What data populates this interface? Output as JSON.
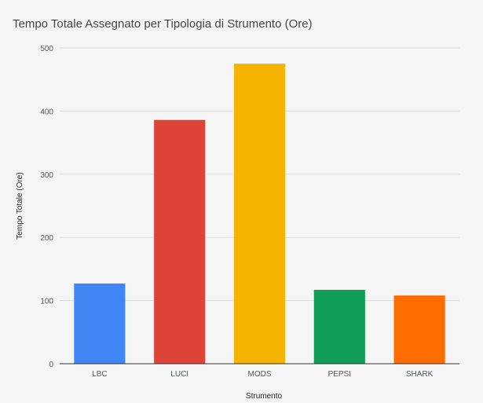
{
  "chart_data": {
    "type": "bar",
    "title": "Tempo Totale Assegnato per Tipologia di Strumento (Ore)",
    "xlabel": "Strumento",
    "ylabel": "Tempo Totale (Ore)",
    "categories": [
      "LBC",
      "LUCI",
      "MODS",
      "PEPSI",
      "SHARK"
    ],
    "values": [
      127,
      386,
      475,
      117,
      108
    ],
    "colors": [
      "#4285f4",
      "#db4437",
      "#f4b400",
      "#0f9d58",
      "#ff6d00"
    ],
    "ylim": [
      0,
      500
    ],
    "yticks": [
      0,
      100,
      200,
      300,
      400,
      500
    ],
    "grid": true,
    "legend": "none"
  }
}
